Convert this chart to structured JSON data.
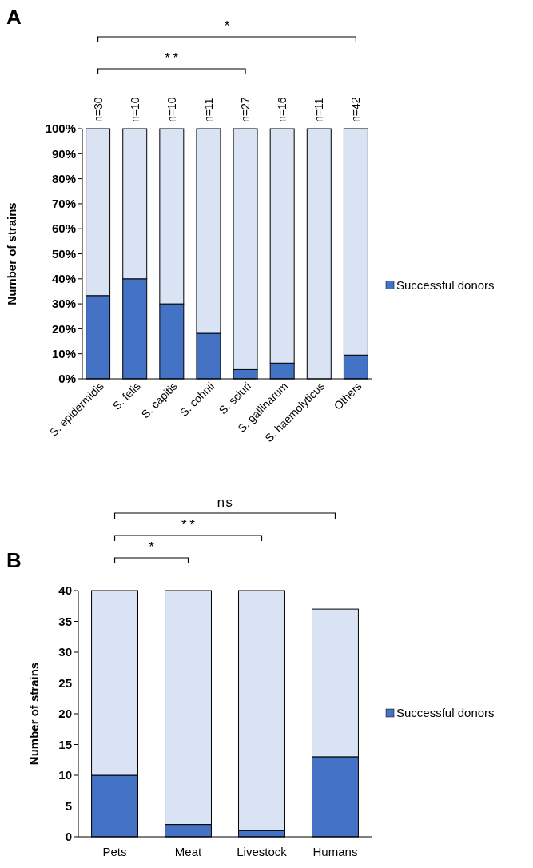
{
  "chart_data": [
    {
      "type": "bar",
      "title": "A",
      "ylabel": "Number of strains",
      "stacked": true,
      "legend": "right",
      "categories": [
        "S. epidermidis",
        "S. felis",
        "S. capitis",
        "S. cohnii",
        "S. sciuri",
        "S. gallinarum",
        "S. haemolyticus",
        "Others"
      ],
      "series": [
        {
          "name": "Successful donors",
          "color": "#4472c4",
          "values": [
            33.3,
            40,
            30,
            18.2,
            3.7,
            6.3,
            0,
            9.5
          ]
        },
        {
          "color": "#dae3f3",
          "values": [
            66.7,
            60,
            70,
            81.8,
            96.3,
            93.7,
            100,
            90.5
          ]
        }
      ],
      "ylim": [
        0,
        100
      ],
      "yticks": [
        {
          "value": 0,
          "label": "0%"
        },
        {
          "value": 10,
          "label": "10%"
        },
        {
          "value": 20,
          "label": "20%"
        },
        {
          "value": 30,
          "label": "30%"
        },
        {
          "value": 40,
          "label": "40%"
        },
        {
          "value": 50,
          "label": "50%"
        },
        {
          "value": 60,
          "label": "60%"
        },
        {
          "value": 70,
          "label": "70%"
        },
        {
          "value": 80,
          "label": "80%"
        },
        {
          "value": 90,
          "label": "90%"
        },
        {
          "value": 100,
          "label": "100%"
        }
      ],
      "annotations": [
        "**",
        "*",
        "n=30",
        "n=10",
        "n=10",
        "n=11",
        "n=27",
        "n=16",
        "n=11",
        "n=42"
      ]
    },
    {
      "type": "bar",
      "title": "B",
      "ylabel": "Number of strains",
      "stacked": true,
      "legend": "right",
      "categories": [
        "Pets",
        "Meat",
        "Livestock",
        "Humans"
      ],
      "series": [
        {
          "name": "Successful donors",
          "color": "#4472c4",
          "values": [
            10,
            2,
            1,
            13
          ]
        },
        {
          "color": "#dae3f3",
          "values": [
            30,
            38,
            39,
            24
          ]
        }
      ],
      "ylim": [
        0,
        40
      ],
      "yticks": [
        0,
        5,
        10,
        15,
        20,
        25,
        30,
        35,
        40
      ],
      "annotations": [
        "*",
        "**",
        "ns"
      ]
    }
  ]
}
